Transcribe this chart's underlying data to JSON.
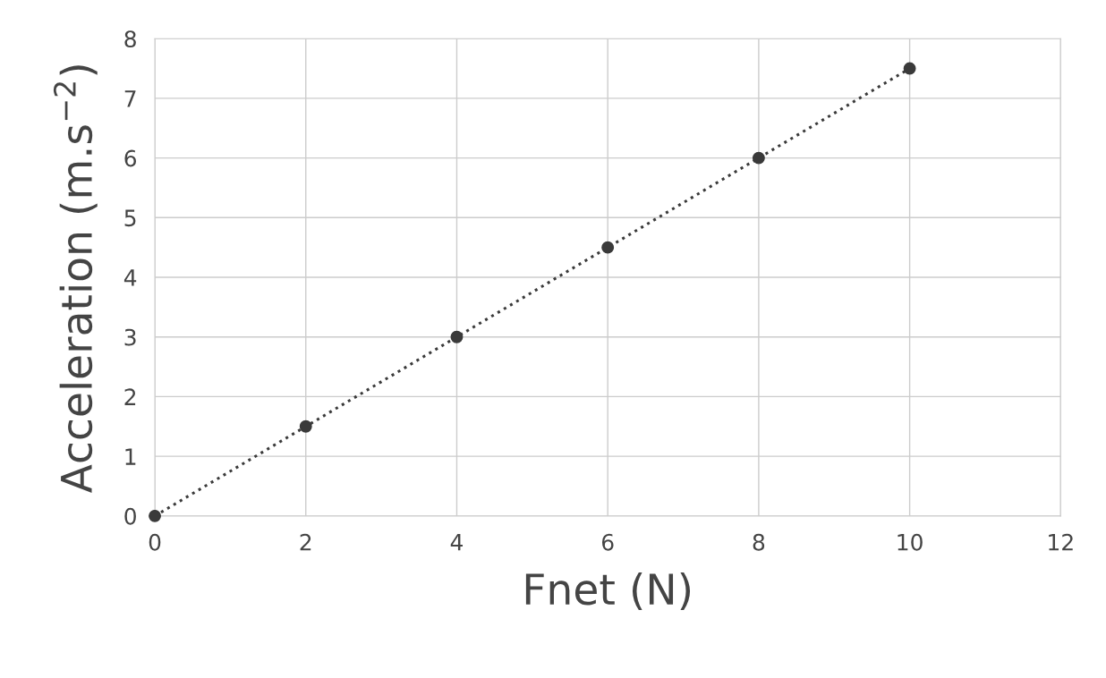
{
  "chart_data": {
    "type": "line",
    "xlabel": "Fnet (N)",
    "ylabel": "Acceleration (m.s$^{−2}$)",
    "x": [
      0,
      2,
      4,
      6,
      8,
      10
    ],
    "series": [
      {
        "color": "#3a3a3a",
        "values": [
          0,
          1.5,
          3,
          4.5,
          6,
          7.5
        ]
      }
    ],
    "xlim": [
      0,
      12
    ],
    "xticks": [
      0,
      2,
      4,
      6,
      8,
      10,
      12
    ],
    "ylim": [
      0,
      8
    ],
    "yticks": [
      0,
      1,
      2,
      3,
      4,
      5,
      6,
      7,
      8
    ],
    "grid": true,
    "marker": "circle",
    "line_style": "dotted"
  }
}
